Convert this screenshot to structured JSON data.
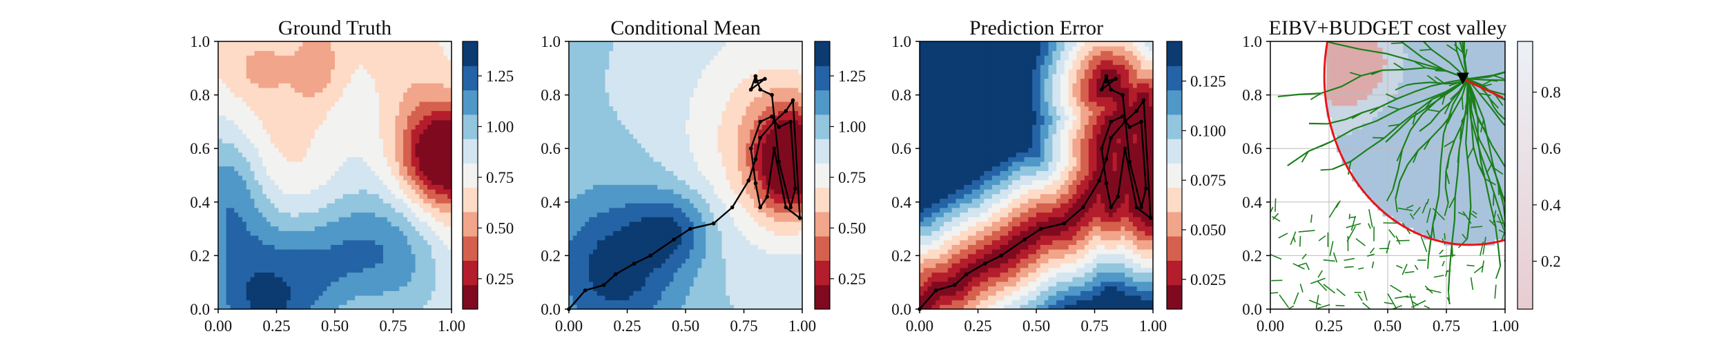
{
  "figure": {
    "background": "#ffffff"
  },
  "chart_data": [
    {
      "type": "heatmap",
      "title": "Ground Truth",
      "xlim": [
        0,
        1
      ],
      "ylim": [
        0,
        1
      ],
      "xticks": [
        "0.00",
        "0.25",
        "0.50",
        "0.75",
        "1.00"
      ],
      "yticks": [
        "0.0",
        "0.2",
        "0.4",
        "0.6",
        "0.8",
        "1.0"
      ],
      "colorbar": {
        "colormap": "RdBu",
        "ticks": [
          "0.25",
          "0.50",
          "0.75",
          "1.00",
          "1.25"
        ],
        "range": [
          0.1,
          1.42
        ]
      },
      "field_features": [
        {
          "kind": "low",
          "x": 0.96,
          "y": 0.56,
          "value": 0.1
        },
        {
          "kind": "mid",
          "x": 0.4,
          "y": 0.92,
          "value": 0.7
        },
        {
          "kind": "high",
          "x": 0.2,
          "y": 0.02,
          "value": 1.4
        },
        {
          "kind": "high",
          "x": 0.45,
          "y": 0.2,
          "value": 1.3
        }
      ]
    },
    {
      "type": "heatmap",
      "title": "Conditional Mean",
      "xlim": [
        0,
        1
      ],
      "ylim": [
        0,
        1
      ],
      "xticks": [
        "0.00",
        "0.25",
        "0.50",
        "0.75",
        "1.00"
      ],
      "yticks": [
        "0.0",
        "0.2",
        "0.4",
        "0.6",
        "0.8",
        "1.0"
      ],
      "colorbar": {
        "colormap": "RdBu",
        "ticks": [
          "0.25",
          "0.50",
          "0.75",
          "1.00",
          "1.25"
        ],
        "range": [
          0.1,
          1.42
        ]
      },
      "path": {
        "color": "#000000",
        "x": [
          0.0,
          0.07,
          0.15,
          0.2,
          0.28,
          0.35,
          0.45,
          0.52,
          0.62,
          0.7,
          0.77,
          0.8,
          0.82,
          0.88,
          0.93,
          0.96,
          0.99,
          0.93,
          0.88,
          0.85,
          0.82,
          0.8,
          0.78,
          0.82,
          0.87,
          0.9,
          0.95,
          0.97,
          0.95,
          0.9,
          0.87,
          0.82,
          0.8,
          0.8,
          0.84,
          0.78,
          0.8
        ],
        "y": [
          0.0,
          0.07,
          0.09,
          0.13,
          0.17,
          0.2,
          0.26,
          0.3,
          0.32,
          0.38,
          0.48,
          0.56,
          0.64,
          0.7,
          0.74,
          0.78,
          0.34,
          0.38,
          0.6,
          0.42,
          0.38,
          0.47,
          0.6,
          0.7,
          0.72,
          0.68,
          0.7,
          0.45,
          0.38,
          0.55,
          0.8,
          0.82,
          0.87,
          0.85,
          0.86,
          0.82,
          0.87
        ]
      }
    },
    {
      "type": "heatmap",
      "title": "Prediction Error",
      "xlim": [
        0,
        1
      ],
      "ylim": [
        0,
        1
      ],
      "xticks": [
        "0.00",
        "0.25",
        "0.50",
        "0.75",
        "1.00"
      ],
      "yticks": [
        "0.0",
        "0.2",
        "0.4",
        "0.6",
        "0.8",
        "1.0"
      ],
      "colorbar": {
        "colormap": "RdBu",
        "ticks": [
          "0.025",
          "0.050",
          "0.075",
          "0.100",
          "0.125"
        ],
        "range": [
          0.01,
          0.145
        ]
      },
      "path": {
        "color": "#000000",
        "x": [
          0.0,
          0.07,
          0.15,
          0.2,
          0.28,
          0.35,
          0.45,
          0.52,
          0.62,
          0.7,
          0.77,
          0.8,
          0.82,
          0.88,
          0.93,
          0.96,
          0.99,
          0.93,
          0.88,
          0.85,
          0.82,
          0.8,
          0.78,
          0.82,
          0.87,
          0.9,
          0.95,
          0.97,
          0.95,
          0.9,
          0.87,
          0.82,
          0.8,
          0.8,
          0.84,
          0.78,
          0.8
        ],
        "y": [
          0.0,
          0.07,
          0.09,
          0.13,
          0.17,
          0.2,
          0.26,
          0.3,
          0.32,
          0.38,
          0.48,
          0.56,
          0.64,
          0.7,
          0.74,
          0.78,
          0.34,
          0.38,
          0.6,
          0.42,
          0.38,
          0.47,
          0.6,
          0.7,
          0.72,
          0.68,
          0.7,
          0.45,
          0.38,
          0.55,
          0.8,
          0.82,
          0.87,
          0.85,
          0.86,
          0.82,
          0.87
        ]
      }
    },
    {
      "type": "heatmap",
      "title": "EIBV+BUDGET cost valley",
      "xlim": [
        0,
        1
      ],
      "ylim": [
        0,
        1
      ],
      "xticks": [
        "0.00",
        "0.25",
        "0.50",
        "0.75",
        "1.00"
      ],
      "yticks": [
        "0.0",
        "0.2",
        "0.4",
        "0.6",
        "0.8",
        "1.0"
      ],
      "grid": true,
      "colorbar": {
        "colormap": "RdBu",
        "ticks": [
          "0.2",
          "0.4",
          "0.6",
          "0.8"
        ],
        "range": [
          0.03,
          0.98
        ]
      },
      "budget_ellipse": {
        "color": "#e8141a",
        "center": [
          0.85,
          0.87
        ],
        "radii": [
          0.62,
          0.63
        ]
      },
      "tree_color": "#1a7f1a",
      "current_location": {
        "x": 0.82,
        "y": 0.86,
        "marker": "triangle-down"
      },
      "next_direction": {
        "x": [
          0.82,
          0.99
        ],
        "y": [
          0.86,
          0.79
        ],
        "color": "#e8141a"
      }
    }
  ]
}
